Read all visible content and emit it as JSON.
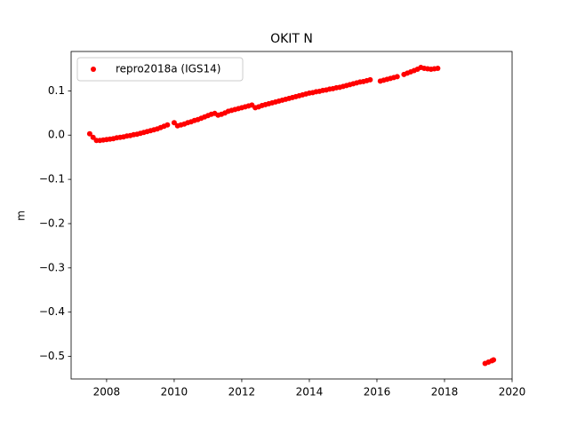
{
  "chart_data": {
    "type": "scatter",
    "title": "OKIT N",
    "y_label": "m",
    "x": [
      2007.5,
      2007.6,
      2007.7,
      2007.8,
      2007.9,
      2008.0,
      2008.1,
      2008.2,
      2008.3,
      2008.4,
      2008.5,
      2008.6,
      2008.7,
      2008.8,
      2008.9,
      2009.0,
      2009.1,
      2009.2,
      2009.3,
      2009.4,
      2009.5,
      2009.6,
      2009.7,
      2009.8,
      2010.0,
      2010.1,
      2010.2,
      2010.3,
      2010.4,
      2010.5,
      2010.6,
      2010.7,
      2010.8,
      2010.9,
      2011.0,
      2011.1,
      2011.2,
      2011.3,
      2011.4,
      2011.5,
      2011.6,
      2011.7,
      2011.8,
      2011.9,
      2012.0,
      2012.1,
      2012.2,
      2012.3,
      2012.4,
      2012.5,
      2012.6,
      2012.7,
      2012.8,
      2012.9,
      2013.0,
      2013.1,
      2013.2,
      2013.3,
      2013.4,
      2013.5,
      2013.6,
      2013.7,
      2013.8,
      2013.9,
      2014.0,
      2014.1,
      2014.2,
      2014.3,
      2014.4,
      2014.5,
      2014.6,
      2014.7,
      2014.8,
      2014.9,
      2015.0,
      2015.1,
      2015.2,
      2015.3,
      2015.4,
      2015.5,
      2015.6,
      2015.7,
      2015.8,
      2016.1,
      2016.2,
      2016.3,
      2016.4,
      2016.5,
      2016.6,
      2016.8,
      2016.9,
      2017.0,
      2017.1,
      2017.2,
      2017.3,
      2017.4,
      2017.5,
      2017.6,
      2017.7,
      2017.8,
      2019.2,
      2019.3,
      2019.4,
      2019.45
    ],
    "series": [
      {
        "name": "repro2018a (IGS14)",
        "color": "#ff0000",
        "values": [
          0.003,
          -0.005,
          -0.012,
          -0.012,
          -0.011,
          -0.01,
          -0.009,
          -0.008,
          -0.006,
          -0.005,
          -0.004,
          -0.002,
          -0.001,
          0.001,
          0.002,
          0.004,
          0.006,
          0.008,
          0.01,
          0.012,
          0.014,
          0.017,
          0.02,
          0.023,
          0.028,
          0.021,
          0.023,
          0.025,
          0.028,
          0.03,
          0.033,
          0.035,
          0.038,
          0.041,
          0.044,
          0.047,
          0.049,
          0.045,
          0.047,
          0.05,
          0.054,
          0.056,
          0.058,
          0.06,
          0.062,
          0.064,
          0.066,
          0.068,
          0.062,
          0.064,
          0.067,
          0.069,
          0.071,
          0.073,
          0.075,
          0.077,
          0.079,
          0.081,
          0.083,
          0.085,
          0.087,
          0.089,
          0.091,
          0.093,
          0.095,
          0.096,
          0.098,
          0.099,
          0.101,
          0.102,
          0.104,
          0.105,
          0.107,
          0.108,
          0.11,
          0.112,
          0.114,
          0.116,
          0.118,
          0.12,
          0.121,
          0.123,
          0.125,
          0.122,
          0.124,
          0.126,
          0.128,
          0.13,
          0.132,
          0.137,
          0.14,
          0.143,
          0.146,
          0.149,
          0.153,
          0.151,
          0.15,
          0.149,
          0.15,
          0.151,
          -0.516,
          -0.513,
          -0.51,
          -0.508
        ]
      }
    ],
    "xlim": [
      2006.95,
      2020.0
    ],
    "xticks": [
      2008,
      2010,
      2012,
      2014,
      2016,
      2018,
      2020
    ],
    "ylim": [
      -0.551,
      0.189
    ],
    "yticks": [
      {
        "value": -0.5,
        "label": "−0.5"
      },
      {
        "value": -0.4,
        "label": "−0.4"
      },
      {
        "value": -0.3,
        "label": "−0.3"
      },
      {
        "value": -0.2,
        "label": "−0.2"
      },
      {
        "value": -0.1,
        "label": "−0.1"
      },
      {
        "value": 0.0,
        "label": "0.0"
      },
      0.1
    ],
    "legend": "upper left",
    "grid": false
  }
}
